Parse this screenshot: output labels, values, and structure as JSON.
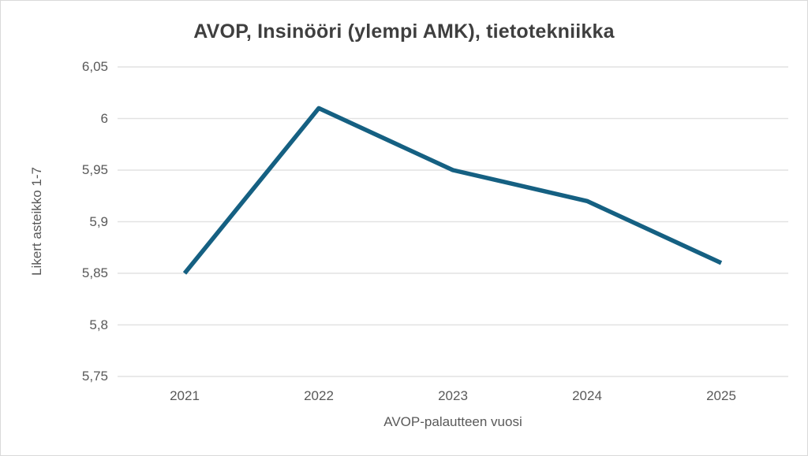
{
  "window": {
    "background_color": "#ffffff",
    "border_color": "#d9d9d9"
  },
  "chart_data": {
    "type": "line",
    "title": "AVOP, Insinööri (ylempi AMK), tietotekniikka",
    "xlabel": "AVOP-palautteen vuosi",
    "ylabel": "Likert asteikko 1-7",
    "categories": [
      "2021",
      "2022",
      "2023",
      "2024",
      "2025"
    ],
    "values": [
      5.85,
      6.01,
      5.95,
      5.92,
      5.86
    ],
    "ylim": [
      5.75,
      6.05
    ],
    "yticks": [
      5.75,
      5.8,
      5.85,
      5.9,
      5.95,
      6,
      6.05
    ],
    "ytick_labels": [
      "5,75",
      "5,8",
      "5,85",
      "5,9",
      "5,95",
      "6",
      "6,05"
    ],
    "grid": "horizontal",
    "legend": "none",
    "colors": {
      "line": "#156082",
      "gridline": "#e2e2e2",
      "tick_text": "#595959",
      "axis_title_text": "#595959",
      "title_text": "#3f3f3f"
    }
  }
}
